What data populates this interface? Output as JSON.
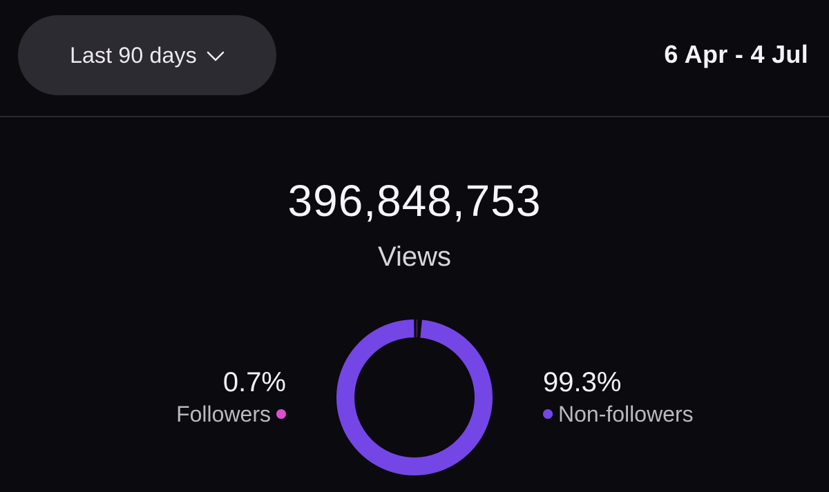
{
  "header": {
    "range_select_label": "Last 90 days",
    "date_range": "6 Apr - 4 Jul"
  },
  "summary": {
    "total": "396,848,753",
    "total_label": "Views"
  },
  "breakdown": {
    "followers": {
      "value": "0.7%",
      "label": "Followers",
      "color": "#d94fd3",
      "share": 0.7
    },
    "non_followers": {
      "value": "99.3%",
      "label": "Non-followers",
      "color": "#7446e6",
      "share": 99.3
    }
  },
  "icons": {
    "range_select": "chevron-down-icon"
  }
}
